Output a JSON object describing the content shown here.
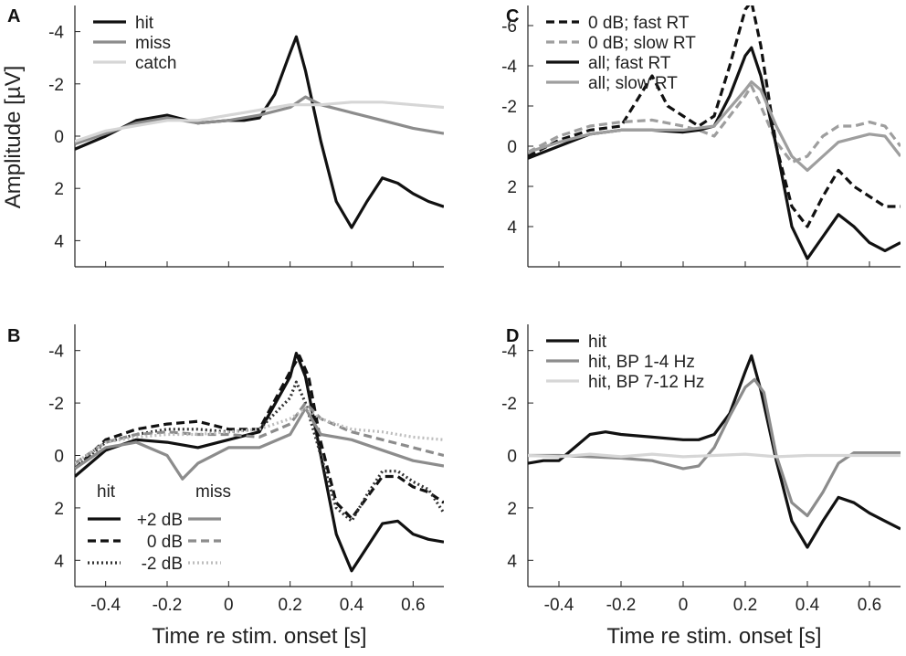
{
  "figure": {
    "shared_xlabel": "Time re stim. onset [s]",
    "shared_ylabel": "Amplitude [µV]",
    "line_colors": {
      "black": "#111111",
      "gray": "#8c8c8c",
      "light": "#d6d6d6"
    }
  },
  "chart_data": [
    {
      "panel": "A",
      "type": "line",
      "xlabel": "",
      "ylabel": "Amplitude [µV]",
      "xlim": [
        -0.5,
        0.7
      ],
      "ylim": [
        -5,
        5
      ],
      "y_inverted": true,
      "xticks": [
        -0.4,
        -0.2,
        0,
        0.2,
        0.4,
        0.6
      ],
      "xticklabels": [],
      "yticks": [
        -4,
        -2,
        0,
        2,
        4
      ],
      "yticklabels": [
        "-4",
        "-2",
        "0",
        "2",
        "4"
      ],
      "legend": {
        "position": "top-left",
        "labels": [
          "hit",
          "miss",
          "catch"
        ]
      },
      "series": [
        {
          "name": "hit",
          "color": "#111111",
          "dash": "solid",
          "x": [
            -0.5,
            -0.4,
            -0.3,
            -0.2,
            -0.1,
            0,
            0.05,
            0.1,
            0.15,
            0.2,
            0.22,
            0.25,
            0.3,
            0.35,
            0.4,
            0.45,
            0.5,
            0.55,
            0.6,
            0.65,
            0.7
          ],
          "y": [
            0.5,
            0,
            -0.6,
            -0.8,
            -0.5,
            -0.6,
            -0.6,
            -0.7,
            -1.6,
            -3.2,
            -3.8,
            -2.5,
            0.2,
            2.5,
            3.5,
            2.5,
            1.6,
            1.8,
            2.2,
            2.5,
            2.7
          ]
        },
        {
          "name": "miss",
          "color": "#8c8c8c",
          "dash": "solid",
          "x": [
            -0.5,
            -0.4,
            -0.3,
            -0.2,
            -0.1,
            0,
            0.1,
            0.2,
            0.25,
            0.3,
            0.4,
            0.5,
            0.6,
            0.7
          ],
          "y": [
            0.3,
            -0.1,
            -0.5,
            -0.7,
            -0.5,
            -0.6,
            -0.8,
            -1.1,
            -1.5,
            -1.2,
            -0.9,
            -0.6,
            -0.3,
            -0.1
          ]
        },
        {
          "name": "catch",
          "color": "#d6d6d6",
          "dash": "solid",
          "x": [
            -0.5,
            -0.4,
            -0.3,
            -0.2,
            -0.1,
            0,
            0.1,
            0.2,
            0.3,
            0.4,
            0.5,
            0.6,
            0.7
          ],
          "y": [
            0.2,
            -0.2,
            -0.4,
            -0.6,
            -0.6,
            -0.8,
            -1,
            -1.2,
            -1.2,
            -1.3,
            -1.3,
            -1.2,
            -1.1
          ]
        }
      ]
    },
    {
      "panel": "B",
      "type": "line",
      "xlabel": "Time re stim. onset [s]",
      "ylabel": "",
      "xlim": [
        -0.5,
        0.7
      ],
      "ylim": [
        -5,
        5
      ],
      "y_inverted": true,
      "xticks": [
        -0.4,
        -0.2,
        0,
        0.2,
        0.4,
        0.6
      ],
      "xticklabels": [
        "-0.4",
        "-0.2",
        "0",
        "0.2",
        "0.4",
        "0.6"
      ],
      "yticks": [
        -4,
        -2,
        0,
        2,
        4
      ],
      "yticklabels": [
        "-4",
        "-2",
        "0",
        "2",
        "4"
      ],
      "legend": {
        "position": "bottom-left",
        "headers": [
          "hit",
          "miss"
        ],
        "labels": [
          "+2 dB",
          "0 dB",
          "-2 dB"
        ]
      },
      "series": [
        {
          "name": "hit +2 dB",
          "color": "#111111",
          "dash": "solid",
          "x": [
            -0.5,
            -0.4,
            -0.3,
            -0.2,
            -0.1,
            0,
            0.1,
            0.2,
            0.22,
            0.25,
            0.3,
            0.35,
            0.4,
            0.45,
            0.5,
            0.55,
            0.6,
            0.65,
            0.7
          ],
          "y": [
            0.8,
            -0.2,
            -0.6,
            -0.5,
            -0.3,
            -0.6,
            -0.9,
            -3,
            -3.9,
            -3,
            0,
            3,
            4.4,
            3.5,
            2.6,
            2.5,
            3,
            3.2,
            3.3
          ]
        },
        {
          "name": "hit 0 dB",
          "color": "#111111",
          "dash": "dashed",
          "x": [
            -0.5,
            -0.4,
            -0.3,
            -0.2,
            -0.1,
            0,
            0.1,
            0.2,
            0.23,
            0.26,
            0.3,
            0.35,
            0.4,
            0.45,
            0.5,
            0.55,
            0.6,
            0.65,
            0.7
          ],
          "y": [
            0.5,
            -0.6,
            -1,
            -1.2,
            -1.3,
            -1,
            -1,
            -3.2,
            -3.8,
            -3,
            -0.5,
            1.8,
            2.4,
            1.6,
            0.8,
            0.8,
            1.2,
            1.4,
            1.8
          ]
        },
        {
          "name": "hit -2 dB",
          "color": "#333333",
          "dash": "dotted",
          "x": [
            -0.5,
            -0.4,
            -0.3,
            -0.2,
            -0.1,
            0,
            0.1,
            0.2,
            0.22,
            0.25,
            0.3,
            0.35,
            0.4,
            0.45,
            0.5,
            0.55,
            0.6,
            0.65,
            0.7
          ],
          "y": [
            0.5,
            -0.5,
            -0.8,
            -1,
            -1,
            -0.9,
            -1,
            -2.2,
            -2.8,
            -2,
            0,
            2,
            2.5,
            1.5,
            0.6,
            0.6,
            1,
            1.3,
            2.2
          ]
        },
        {
          "name": "miss +2 dB",
          "color": "#8c8c8c",
          "dash": "solid",
          "x": [
            -0.5,
            -0.4,
            -0.3,
            -0.2,
            -0.15,
            -0.1,
            0,
            0.1,
            0.2,
            0.25,
            0.3,
            0.4,
            0.5,
            0.6,
            0.7
          ],
          "y": [
            0.5,
            -0.3,
            -0.5,
            0,
            0.9,
            0.3,
            -0.3,
            -0.3,
            -0.8,
            -1.8,
            -0.8,
            -0.6,
            -0.2,
            0.2,
            0.4
          ]
        },
        {
          "name": "miss 0 dB",
          "color": "#8c8c8c",
          "dash": "dashed",
          "x": [
            -0.5,
            -0.4,
            -0.3,
            -0.2,
            -0.1,
            0,
            0.1,
            0.2,
            0.25,
            0.3,
            0.4,
            0.5,
            0.6,
            0.7
          ],
          "y": [
            0.3,
            -0.5,
            -0.8,
            -0.9,
            -0.8,
            -0.8,
            -0.7,
            -1.2,
            -2,
            -1.4,
            -0.9,
            -0.6,
            -0.3,
            0
          ]
        },
        {
          "name": "miss -2 dB",
          "color": "#bdbdbd",
          "dash": "dotted",
          "x": [
            -0.5,
            -0.4,
            -0.3,
            -0.2,
            -0.1,
            0,
            0.1,
            0.2,
            0.25,
            0.3,
            0.4,
            0.5,
            0.6,
            0.7
          ],
          "y": [
            0.3,
            -0.5,
            -0.7,
            -0.8,
            -0.8,
            -0.9,
            -1,
            -1.4,
            -1.8,
            -1.4,
            -1,
            -0.9,
            -0.7,
            -0.6
          ]
        }
      ]
    },
    {
      "panel": "C",
      "type": "line",
      "xlabel": "",
      "ylabel": "",
      "xlim": [
        -0.5,
        0.7
      ],
      "ylim": [
        -7,
        6
      ],
      "y_inverted": true,
      "xticks": [
        -0.4,
        -0.2,
        0,
        0.2,
        0.4,
        0.6
      ],
      "xticklabels": [],
      "yticks": [
        -6,
        -4,
        -2,
        0,
        2,
        4
      ],
      "yticklabels": [
        "-6",
        "-4",
        "-2",
        "0",
        "2",
        "4"
      ],
      "legend": {
        "position": "top-left",
        "labels": [
          "0 dB; fast RT",
          "0 dB; slow RT",
          "all; fast RT",
          "all; slow RT"
        ]
      },
      "series": [
        {
          "name": "0 dB; fast RT",
          "color": "#111111",
          "dash": "dashed",
          "x": [
            -0.5,
            -0.4,
            -0.3,
            -0.2,
            -0.1,
            -0.05,
            0,
            0.05,
            0.1,
            0.15,
            0.2,
            0.22,
            0.25,
            0.3,
            0.35,
            0.4,
            0.45,
            0.5,
            0.55,
            0.6,
            0.65,
            0.7
          ],
          "y": [
            0.5,
            -0.3,
            -0.8,
            -1,
            -3.5,
            -2,
            -1.5,
            -1,
            -1.5,
            -4,
            -6.8,
            -7.2,
            -5,
            0,
            3,
            4,
            2.5,
            1.2,
            2,
            2.5,
            3,
            3
          ]
        },
        {
          "name": "0 dB; slow RT",
          "color": "#9e9e9e",
          "dash": "dashed",
          "x": [
            -0.5,
            -0.4,
            -0.3,
            -0.2,
            -0.1,
            0,
            0.05,
            0.1,
            0.15,
            0.2,
            0.22,
            0.25,
            0.3,
            0.35,
            0.4,
            0.45,
            0.5,
            0.55,
            0.6,
            0.65,
            0.7
          ],
          "y": [
            0.3,
            -0.5,
            -1,
            -1.2,
            -1.3,
            -1,
            -0.8,
            -0.5,
            -1.5,
            -2.5,
            -3,
            -2,
            -0.2,
            0.8,
            0.5,
            -0.5,
            -1,
            -1,
            -1.2,
            -1,
            0
          ]
        },
        {
          "name": "all; fast RT",
          "color": "#111111",
          "dash": "solid",
          "x": [
            -0.5,
            -0.4,
            -0.3,
            -0.2,
            -0.1,
            0,
            0.05,
            0.1,
            0.15,
            0.2,
            0.22,
            0.25,
            0.3,
            0.35,
            0.4,
            0.45,
            0.5,
            0.55,
            0.6,
            0.65,
            0.7
          ],
          "y": [
            0.6,
            0,
            -0.6,
            -0.8,
            -0.8,
            -0.7,
            -0.8,
            -1,
            -2.5,
            -4.5,
            -4.9,
            -3.5,
            0,
            4,
            5.6,
            4.5,
            3.4,
            4,
            4.8,
            5.2,
            4.8
          ]
        },
        {
          "name": "all; slow RT",
          "color": "#9e9e9e",
          "dash": "solid",
          "x": [
            -0.5,
            -0.4,
            -0.3,
            -0.2,
            -0.1,
            0,
            0.1,
            0.2,
            0.22,
            0.25,
            0.3,
            0.35,
            0.4,
            0.45,
            0.5,
            0.55,
            0.6,
            0.65,
            0.7
          ],
          "y": [
            0.3,
            -0.2,
            -0.6,
            -0.8,
            -0.8,
            -0.8,
            -1,
            -2.8,
            -3.2,
            -2.8,
            -1,
            0.5,
            1.2,
            0.5,
            -0.2,
            -0.4,
            -0.6,
            -0.5,
            0.5
          ]
        }
      ]
    },
    {
      "panel": "D",
      "type": "line",
      "xlabel": "Time re stim. onset [s]",
      "ylabel": "",
      "xlim": [
        -0.5,
        0.7
      ],
      "ylim": [
        -5,
        5
      ],
      "y_inverted": true,
      "xticks": [
        -0.4,
        -0.2,
        0,
        0.2,
        0.4,
        0.6
      ],
      "xticklabels": [
        "-0.4",
        "-0.2",
        "0",
        "0.2",
        "0.4",
        "0.6"
      ],
      "yticks": [
        -4,
        -2,
        0,
        2,
        4
      ],
      "yticklabels": [
        "-4",
        "-2",
        "0",
        "2",
        "4"
      ],
      "legend": {
        "position": "top-left",
        "labels": [
          "hit",
          "hit, BP 1-4 Hz",
          "hit, BP 7-12 Hz"
        ]
      },
      "series": [
        {
          "name": "hit",
          "color": "#111111",
          "dash": "solid",
          "x": [
            -0.5,
            -0.45,
            -0.4,
            -0.35,
            -0.3,
            -0.25,
            -0.2,
            -0.1,
            0,
            0.05,
            0.1,
            0.15,
            0.2,
            0.22,
            0.25,
            0.3,
            0.35,
            0.4,
            0.45,
            0.5,
            0.55,
            0.6,
            0.65,
            0.7
          ],
          "y": [
            0.3,
            0.2,
            0.2,
            -0.3,
            -0.8,
            -0.9,
            -0.8,
            -0.7,
            -0.6,
            -0.6,
            -0.8,
            -1.6,
            -3.2,
            -3.8,
            -2.5,
            0.2,
            2.5,
            3.5,
            2.5,
            1.6,
            1.8,
            2.2,
            2.5,
            2.8
          ]
        },
        {
          "name": "hit, BP 1-4 Hz",
          "color": "#8c8c8c",
          "dash": "solid",
          "x": [
            -0.5,
            -0.4,
            -0.3,
            -0.2,
            -0.1,
            -0.05,
            0,
            0.05,
            0.1,
            0.15,
            0.2,
            0.23,
            0.26,
            0.3,
            0.35,
            0.4,
            0.45,
            0.5,
            0.55,
            0.6,
            0.65,
            0.7
          ],
          "y": [
            0,
            0,
            0.05,
            0.1,
            0.2,
            0.35,
            0.5,
            0.4,
            -0.3,
            -1.5,
            -2.6,
            -2.9,
            -2.4,
            0,
            1.8,
            2.3,
            1.4,
            0.3,
            -0.1,
            -0.1,
            -0.1,
            -0.1
          ]
        },
        {
          "name": "hit, BP 7-12 Hz",
          "color": "#d6d6d6",
          "dash": "solid",
          "x": [
            -0.5,
            -0.4,
            -0.3,
            -0.2,
            -0.1,
            0,
            0.1,
            0.2,
            0.3,
            0.4,
            0.5,
            0.6,
            0.7
          ],
          "y": [
            0,
            0.05,
            -0.05,
            0.05,
            -0.05,
            0.05,
            0,
            -0.05,
            0.05,
            0,
            0,
            0,
            0
          ]
        }
      ]
    }
  ]
}
